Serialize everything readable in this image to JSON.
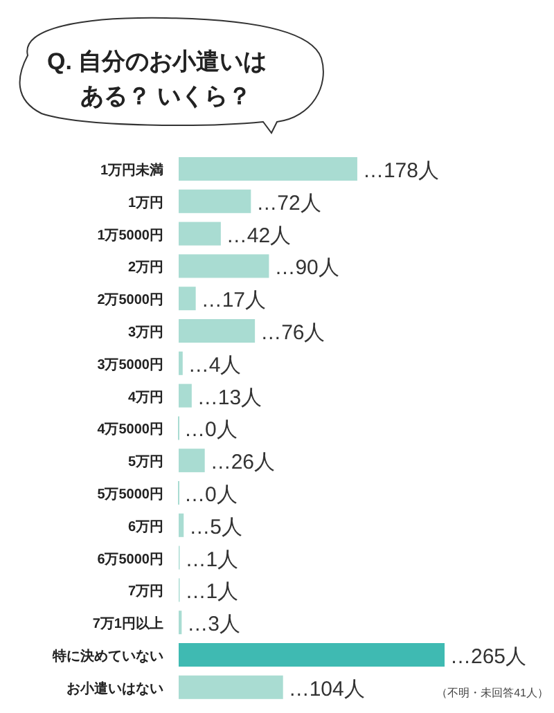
{
  "chart_data": {
    "type": "bar",
    "orientation": "horizontal",
    "title": "Q. 自分のお小遣いは",
    "subtitle": "ある？ いくら？",
    "categories": [
      "1万円未満",
      "1万円",
      "1万5000円",
      "2万円",
      "2万5000円",
      "3万円",
      "3万5000円",
      "4万円",
      "4万5000円",
      "5万円",
      "5万5000円",
      "6万円",
      "6万5000円",
      "7万円",
      "7万1円以上",
      "特に決めていない",
      "お小遣いはない"
    ],
    "values": [
      178,
      72,
      42,
      90,
      17,
      76,
      4,
      13,
      0,
      26,
      0,
      5,
      1,
      1,
      3,
      265,
      104
    ],
    "colors": [
      "#a9dcd2",
      "#a9dcd2",
      "#a9dcd2",
      "#a9dcd2",
      "#a9dcd2",
      "#a9dcd2",
      "#a9dcd2",
      "#a9dcd2",
      "#a9dcd2",
      "#a9dcd2",
      "#a9dcd2",
      "#a9dcd2",
      "#a9dcd2",
      "#a9dcd2",
      "#a9dcd2",
      "#3fbab2",
      "#a9dcd2"
    ],
    "value_labels": [
      "…178人",
      "…72人",
      "…42人",
      "…90人",
      "…17人",
      "…76人",
      "…4人",
      "…13人",
      "…0人",
      "…26人",
      "…0人",
      "…5人",
      "…1人",
      "…1人",
      "…3人",
      "…265人",
      "…104人"
    ],
    "annotations": [
      "（不明・未回答41人）"
    ]
  }
}
